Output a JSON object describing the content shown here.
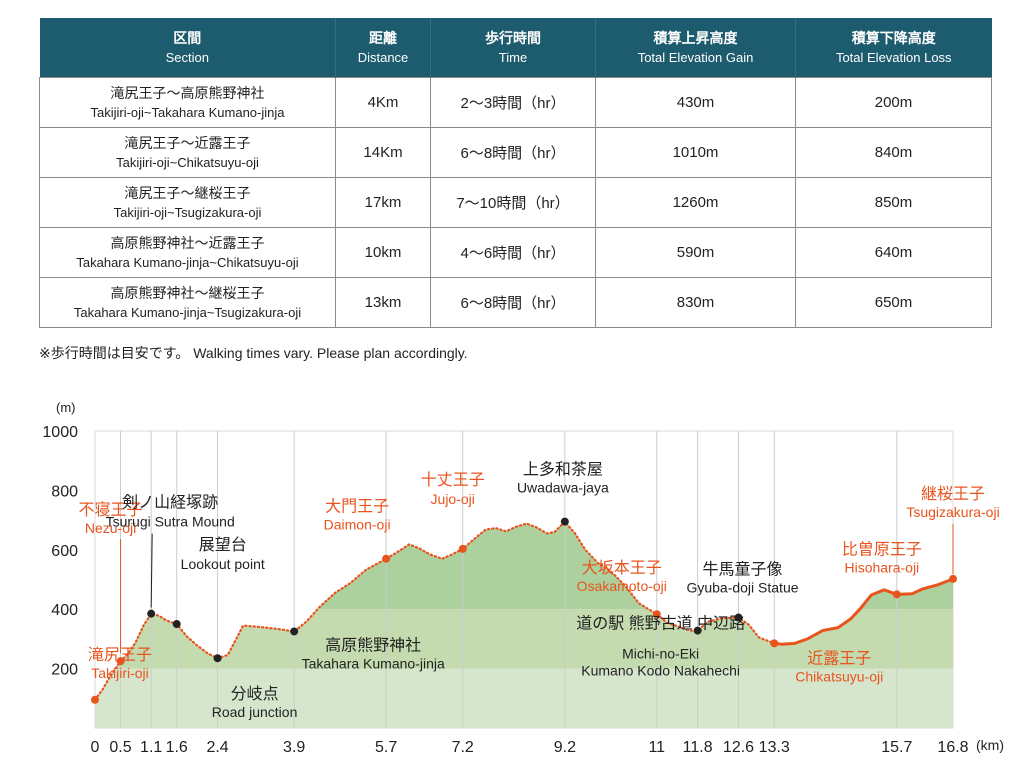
{
  "table": {
    "headers": [
      {
        "jp": "区間",
        "en": "Section"
      },
      {
        "jp": "距離",
        "en": "Distance"
      },
      {
        "jp": "歩行時間",
        "en": "Time"
      },
      {
        "jp": "積算上昇高度",
        "en": "Total Elevation Gain"
      },
      {
        "jp": "積算下降高度",
        "en": "Total Elevation Loss"
      }
    ],
    "rows": [
      {
        "section_jp": "滝尻王子～高原熊野神社",
        "section_en": "Takijiri-oji~Takahara Kumano-jinja",
        "distance": "4Km",
        "time": "2～3時間（hr）",
        "gain": "430m",
        "loss": "200m"
      },
      {
        "section_jp": "滝尻王子～近露王子",
        "section_en": "Takijiri-oji~Chikatsuyu-oji",
        "distance": "14Km",
        "time": "6～8時間（hr）",
        "gain": "1010m",
        "loss": "840m"
      },
      {
        "section_jp": "滝尻王子～継桜王子",
        "section_en": "Takijiri-oji~Tsugizakura-oji",
        "distance": "17km",
        "time": "7～10時間（hr）",
        "gain": "1260m",
        "loss": "850m"
      },
      {
        "section_jp": "高原熊野神社～近露王子",
        "section_en": "Takahara Kumano-jinja~Chikatsuyu-oji",
        "distance": "10km",
        "time": "4～6時間（hr）",
        "gain": "590m",
        "loss": "640m"
      },
      {
        "section_jp": "高原熊野神社～継桜王子",
        "section_en": "Takahara Kumano-jinja~Tsugizakura-oji",
        "distance": "13km",
        "time": "6～8時間（hr）",
        "gain": "830m",
        "loss": "650m"
      }
    ]
  },
  "note": "※歩行時間は目安です。 Walking times vary. Please plan accordingly.",
  "colors": {
    "header_bg": "#1d5b6e",
    "oji": "#e8541e",
    "landmark": "#222222",
    "band_low": "#d6e6cc",
    "band_mid": "#c3dbae",
    "band_high": "#acd09e"
  },
  "chart_data": {
    "type": "area",
    "ylabel": "(m)",
    "xlabel": "(km)",
    "ylim": [
      0,
      1000
    ],
    "xlim": [
      0,
      16.8
    ],
    "yticks": [
      200,
      400,
      600,
      800,
      1000
    ],
    "xticks": [
      0,
      0.5,
      1.1,
      1.6,
      2.4,
      3.9,
      5.7,
      7.2,
      9.2,
      11,
      11.8,
      12.6,
      13.3,
      15.7,
      16.8
    ],
    "grid": "vertical lines at tick distances",
    "profile_dotted": [
      [
        0,
        95
      ],
      [
        0.15,
        130
      ],
      [
        0.3,
        175
      ],
      [
        0.5,
        225
      ],
      [
        0.65,
        250
      ],
      [
        0.8,
        290
      ],
      [
        0.95,
        345
      ],
      [
        1.1,
        385
      ],
      [
        1.25,
        378
      ],
      [
        1.4,
        362
      ],
      [
        1.6,
        350
      ],
      [
        1.8,
        308
      ],
      [
        2.0,
        278
      ],
      [
        2.2,
        252
      ],
      [
        2.4,
        235
      ],
      [
        2.6,
        246
      ],
      [
        2.75,
        295
      ],
      [
        2.9,
        345
      ],
      [
        3.1,
        342
      ],
      [
        3.35,
        338
      ],
      [
        3.6,
        333
      ],
      [
        3.9,
        325
      ],
      [
        4.15,
        360
      ],
      [
        4.4,
        408
      ],
      [
        4.7,
        455
      ],
      [
        5.0,
        488
      ],
      [
        5.3,
        532
      ],
      [
        5.7,
        570
      ],
      [
        5.9,
        590
      ],
      [
        6.15,
        618
      ],
      [
        6.35,
        605
      ],
      [
        6.55,
        585
      ],
      [
        6.8,
        570
      ],
      [
        7.0,
        585
      ],
      [
        7.2,
        603
      ],
      [
        7.45,
        640
      ],
      [
        7.65,
        668
      ],
      [
        7.85,
        673
      ],
      [
        8.05,
        662
      ],
      [
        8.25,
        678
      ],
      [
        8.45,
        688
      ],
      [
        8.65,
        675
      ],
      [
        8.85,
        655
      ],
      [
        9.0,
        660
      ],
      [
        9.2,
        695
      ],
      [
        9.4,
        655
      ],
      [
        9.6,
        600
      ],
      [
        9.85,
        555
      ],
      [
        10.1,
        528
      ],
      [
        10.4,
        475
      ],
      [
        10.65,
        420
      ],
      [
        11.0,
        383
      ],
      [
        11.2,
        355
      ],
      [
        11.45,
        340
      ],
      [
        11.65,
        328
      ],
      [
        11.8,
        328
      ],
      [
        12.0,
        358
      ],
      [
        12.3,
        370
      ],
      [
        12.6,
        372
      ],
      [
        12.8,
        348
      ],
      [
        13.0,
        305
      ],
      [
        13.3,
        285
      ]
    ],
    "profile_solid": [
      [
        13.3,
        285
      ],
      [
        13.45,
        282
      ],
      [
        13.7,
        285
      ],
      [
        13.95,
        300
      ],
      [
        14.25,
        328
      ],
      [
        14.55,
        338
      ],
      [
        14.8,
        368
      ],
      [
        15.0,
        405
      ],
      [
        15.2,
        448
      ],
      [
        15.45,
        465
      ],
      [
        15.7,
        450
      ],
      [
        16.0,
        452
      ],
      [
        16.2,
        468
      ],
      [
        16.5,
        482
      ],
      [
        16.8,
        502
      ]
    ],
    "points": [
      {
        "jp": "滝尻王子",
        "en": "Takijiri-oji",
        "x": 0,
        "y": 95,
        "kind": "oji",
        "marker": true
      },
      {
        "jp": "不寝王子",
        "en": "Nezu-oji",
        "x": 0.5,
        "y": 225,
        "kind": "oji",
        "marker": true
      },
      {
        "jp": "剣ノ山経塚跡",
        "en": "Tsurugi Sutra Mound",
        "x": 1.1,
        "y": 385,
        "kind": "landmark",
        "marker": true
      },
      {
        "jp": "展望台",
        "en": "Lookout point",
        "x": 1.6,
        "y": 350,
        "kind": "landmark",
        "marker": true
      },
      {
        "jp": "分岐点",
        "en": "Road junction",
        "x": 2.4,
        "y": 235,
        "kind": "landmark",
        "marker": true
      },
      {
        "jp": "高原熊野神社",
        "en": "Takahara Kumano-jinja",
        "x": 3.9,
        "y": 325,
        "kind": "landmark",
        "marker": true
      },
      {
        "jp": "大門王子",
        "en": "Daimon-oji",
        "x": 5.7,
        "y": 570,
        "kind": "oji",
        "marker": true
      },
      {
        "jp": "十丈王子",
        "en": "Jujo-oji",
        "x": 7.2,
        "y": 603,
        "kind": "oji",
        "marker": true
      },
      {
        "jp": "上多和茶屋",
        "en": "Uwadawa-jaya",
        "x": 9.2,
        "y": 695,
        "kind": "landmark",
        "marker": true
      },
      {
        "jp": "大坂本王子",
        "en": "Osakamoto-oji",
        "x": 11,
        "y": 383,
        "kind": "oji",
        "marker": true
      },
      {
        "jp": "道の駅 熊野古道 中辺路",
        "en": "Michi-no-Eki",
        "en2": "Kumano Kodo Nakahechi",
        "x": 11.8,
        "y": 328,
        "kind": "landmark",
        "marker": true
      },
      {
        "jp": "牛馬童子像",
        "en": "Gyuba-doji Statue",
        "x": 12.6,
        "y": 372,
        "kind": "landmark",
        "marker": true
      },
      {
        "jp": "近露王子",
        "en": "Chikatsuyu-oji",
        "x": 13.3,
        "y": 285,
        "kind": "oji",
        "marker": true
      },
      {
        "jp": "比曽原王子",
        "en": "Hisohara-oji",
        "x": 15.7,
        "y": 450,
        "kind": "oji",
        "marker": true
      },
      {
        "jp": "継桜王子",
        "en": "Tsugizakura-oji",
        "x": 16.8,
        "y": 502,
        "kind": "oji",
        "marker": true
      }
    ]
  }
}
